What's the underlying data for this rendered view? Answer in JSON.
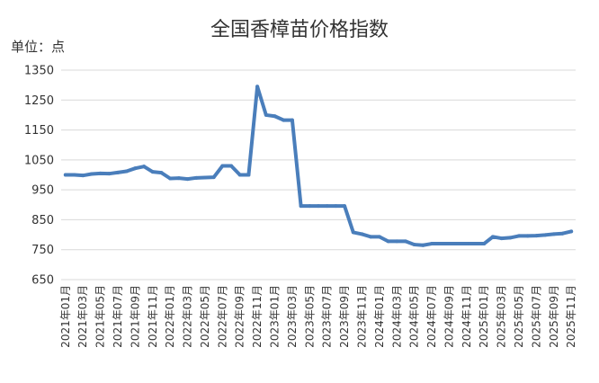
{
  "chart_data": {
    "type": "line",
    "title": "全国香樟苗价格指数",
    "unit_label": "单位：点",
    "xlabel": "",
    "ylabel": "",
    "ylim": [
      650,
      1350
    ],
    "yticks": [
      650,
      750,
      850,
      950,
      1050,
      1150,
      1250,
      1350
    ],
    "grid": true,
    "legend": "none",
    "color": "#4a7ebb",
    "x": [
      "2021年01月",
      "2021年02月",
      "2021年03月",
      "2021年04月",
      "2021年05月",
      "2021年06月",
      "2021年07月",
      "2021年08月",
      "2021年09月",
      "2021年10月",
      "2021年11月",
      "2021年12月",
      "2022年01月",
      "2022年02月",
      "2022年03月",
      "2022年04月",
      "2022年05月",
      "2022年06月",
      "2022年07月",
      "2022年08月",
      "2022年09月",
      "2022年10月",
      "2022年11月",
      "2022年12月",
      "2023年01月",
      "2023年02月",
      "2023年03月",
      "2023年04月",
      "2023年05月",
      "2023年06月",
      "2023年07月",
      "2023年08月",
      "2023年09月",
      "2023年10月",
      "2023年11月",
      "2023年12月",
      "2024年01月",
      "2024年02月",
      "2024年03月",
      "2024年04月",
      "2024年05月",
      "2024年06月",
      "2024年07月",
      "2024年08月",
      "2024年09月",
      "2024年10月",
      "2024年11月",
      "2024年12月",
      "2025年01月",
      "2025年02月",
      "2025年03月",
      "2025年04月",
      "2025年05月",
      "2025年06月",
      "2025年07月",
      "2025年08月",
      "2025年09月",
      "2025年10月",
      "2025年11月"
    ],
    "x_tick_labels": [
      "2021年01月",
      "2021年03月",
      "2021年05月",
      "2021年07月",
      "2021年09月",
      "2021年11月",
      "2022年01月",
      "2022年03月",
      "2022年05月",
      "2022年07月",
      "2022年09月",
      "2022年11月",
      "2023年01月",
      "2023年03月",
      "2023年05月",
      "2023年07月",
      "2023年09月",
      "2023年11月",
      "2024年01月",
      "2024年03月",
      "2024年05月",
      "2024年07月",
      "2024年09月",
      "2024年11月",
      "2025年01月",
      "2025年03月",
      "2025年05月",
      "2025年07月",
      "2025年09月",
      "2025年11月"
    ],
    "series": [
      {
        "values": [
          1000,
          1000,
          998,
          1003,
          1005,
          1004,
          1008,
          1012,
          1022,
          1028,
          1010,
          1007,
          988,
          989,
          986,
          990,
          991,
          992,
          1030,
          1030,
          1000,
          1000,
          1295,
          1200,
          1196,
          1183,
          1183,
          896,
          896,
          896,
          896,
          896,
          896,
          808,
          802,
          793,
          793,
          778,
          778,
          778,
          767,
          765,
          770,
          770,
          770,
          770,
          770,
          770,
          770,
          793,
          788,
          790,
          796,
          796,
          797,
          799,
          802,
          804,
          811
        ]
      }
    ]
  }
}
